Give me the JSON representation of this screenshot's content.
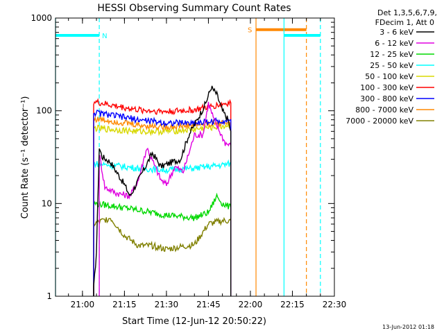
{
  "chart_data": {
    "type": "line",
    "title": "HESSI Observing Summary Count Rates",
    "xlabel": "Start Time (12-Jun-12 20:50:22)",
    "ylabel": "Count Rate (s⁻¹ detector⁻¹)",
    "yscale": "log",
    "ylim": [
      1,
      1000
    ],
    "xlim": [
      "20:50:22",
      "22:30"
    ],
    "x_ticks": [
      "21:00",
      "21:15",
      "21:30",
      "21:45",
      "22:00",
      "22:15",
      "22:30"
    ],
    "y_ticks": [
      "1",
      "10",
      "100",
      "1000"
    ],
    "legend_header": [
      "Det 1,3,5,6,7,9,",
      "FDecim 1, Att 0"
    ],
    "legend_position": "top-right",
    "timestamp": "13-Jun-2012 01:18",
    "series": [
      {
        "name": "3 - 6 keV",
        "color": "#000000",
        "x": [
          "21:04",
          "21:05",
          "21:06",
          "21:07",
          "21:10",
          "21:15",
          "21:17",
          "21:20",
          "21:25",
          "21:28",
          "21:32",
          "21:35",
          "21:38",
          "21:41",
          "21:44",
          "21:46",
          "21:48",
          "21:50",
          "21:52",
          "21:53"
        ],
        "y": [
          1.2,
          3,
          40,
          32,
          28,
          16,
          12,
          18,
          35,
          25,
          28,
          30,
          55,
          80,
          120,
          180,
          150,
          100,
          80,
          60
        ]
      },
      {
        "name": "6 - 12 keV",
        "color": "#e000e0",
        "x": [
          "21:06",
          "21:08",
          "21:12",
          "21:17",
          "21:20",
          "21:23",
          "21:28",
          "21:30",
          "21:33",
          "21:36",
          "21:40",
          "21:43",
          "21:45",
          "21:47",
          "21:49",
          "21:51",
          "21:53"
        ],
        "y": [
          35,
          15,
          13,
          12,
          18,
          40,
          18,
          16,
          25,
          22,
          55,
          55,
          120,
          80,
          60,
          45,
          42
        ]
      },
      {
        "name": "12 - 25 keV",
        "color": "#00d800",
        "x": [
          "21:04",
          "21:10",
          "21:20",
          "21:30",
          "21:40",
          "21:45",
          "21:48",
          "21:50",
          "21:53"
        ],
        "y": [
          10,
          9.5,
          8.5,
          7.5,
          7,
          8,
          12,
          10,
          9
        ]
      },
      {
        "name": "25 - 50 keV",
        "color": "#00ffff",
        "x": [
          "21:04",
          "21:10",
          "21:20",
          "21:30",
          "21:40",
          "21:50",
          "21:53"
        ],
        "y": [
          27,
          26,
          24,
          23,
          24,
          26,
          27
        ]
      },
      {
        "name": "50 - 100 keV",
        "color": "#d8d800",
        "x": [
          "21:04",
          "21:10",
          "21:20",
          "21:30",
          "21:40",
          "21:50",
          "21:53"
        ],
        "y": [
          65,
          63,
          60,
          60,
          63,
          68,
          70
        ]
      },
      {
        "name": "100 - 300 keV",
        "color": "#ff0000",
        "x": [
          "21:04",
          "21:10",
          "21:20",
          "21:30",
          "21:40",
          "21:50",
          "21:53"
        ],
        "y": [
          125,
          115,
          102,
          98,
          102,
          118,
          122
        ]
      },
      {
        "name": "300 - 800 keV",
        "color": "#0000ff",
        "x": [
          "21:04",
          "21:10",
          "21:20",
          "21:30",
          "21:40",
          "21:50",
          "21:53"
        ],
        "y": [
          96,
          90,
          80,
          74,
          74,
          78,
          80
        ]
      },
      {
        "name": "800 - 7000 keV",
        "color": "#ff8800",
        "x": [
          "21:04",
          "21:10",
          "21:20",
          "21:30",
          "21:40",
          "21:50",
          "21:53"
        ],
        "y": [
          82,
          78,
          70,
          67,
          70,
          74,
          76
        ]
      },
      {
        "name": "7000 - 20000 keV",
        "color": "#808000",
        "x": [
          "21:04",
          "21:10",
          "21:15",
          "21:20",
          "21:25",
          "21:30",
          "21:35",
          "21:40",
          "21:45",
          "21:50",
          "21:53"
        ],
        "y": [
          6,
          7,
          4.5,
          3.5,
          3.5,
          3.2,
          3.4,
          3.6,
          6,
          6.5,
          6.5
        ]
      }
    ],
    "flags": [
      {
        "label": "N",
        "color": "#00ffff",
        "start": "20:50:22",
        "end": "21:06",
        "level": 650,
        "start_edge": "solid",
        "end_edge": "dashed"
      },
      {
        "label": "S",
        "color": "#ff8800",
        "start": "22:02",
        "end": "22:20",
        "level": 750,
        "start_edge": "solid",
        "end_edge": "dashed"
      },
      {
        "label": "",
        "color": "#00ffff",
        "start": "22:12",
        "end": "22:25",
        "level": 650,
        "start_edge": "solid",
        "end_edge": "dashed"
      }
    ]
  }
}
